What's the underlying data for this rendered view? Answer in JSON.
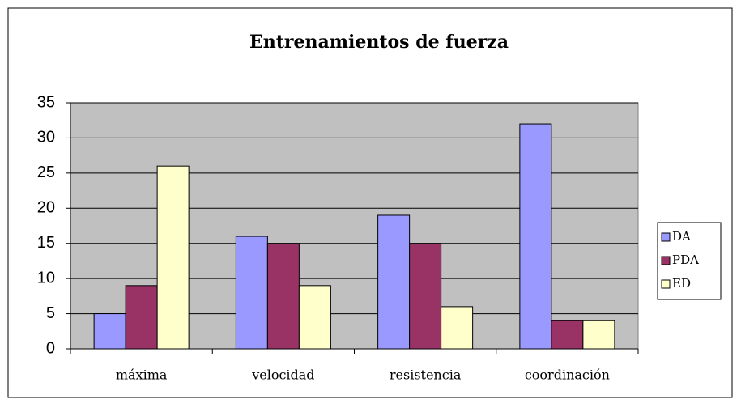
{
  "chart_data": {
    "type": "bar",
    "title": "Entrenamientos de fuerza",
    "categories": [
      "máxima",
      "velocidad",
      "resistencia",
      "coordinación"
    ],
    "series": [
      {
        "name": "DA",
        "color": "#9999ff",
        "values": [
          5,
          16,
          19,
          32
        ]
      },
      {
        "name": "PDA",
        "color": "#993366",
        "values": [
          9,
          15,
          15,
          4
        ]
      },
      {
        "name": "ED",
        "color": "#ffffcc",
        "values": [
          26,
          9,
          6,
          4
        ]
      }
    ],
    "ylim": [
      0,
      35
    ],
    "yticks": [
      0,
      5,
      10,
      15,
      20,
      25,
      30,
      35
    ],
    "grid": true,
    "legend": "right"
  }
}
